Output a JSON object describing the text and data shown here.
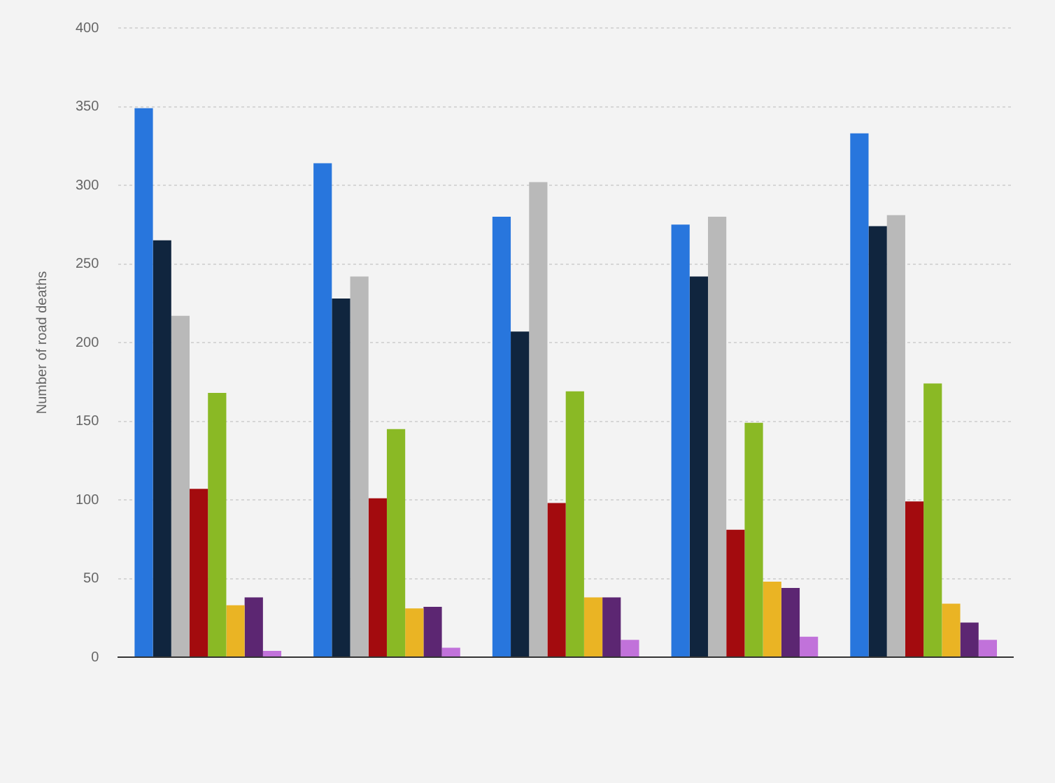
{
  "chart_data": {
    "type": "bar",
    "ylabel": "Number of road deaths",
    "categories": [
      null,
      null,
      null,
      null,
      null
    ],
    "series": [
      {
        "color": "#2876dd",
        "values": [
          349,
          314,
          280,
          275,
          333
        ]
      },
      {
        "color": "#10253e",
        "values": [
          265,
          228,
          207,
          242,
          274
        ]
      },
      {
        "color": "#b9b9b9",
        "values": [
          217,
          242,
          302,
          280,
          281
        ]
      },
      {
        "color": "#a30b0e",
        "values": [
          107,
          101,
          98,
          81,
          99
        ]
      },
      {
        "color": "#8ab925",
        "values": [
          168,
          145,
          169,
          149,
          174
        ]
      },
      {
        "color": "#eab424",
        "values": [
          33,
          31,
          38,
          48,
          34
        ]
      },
      {
        "color": "#5c2672",
        "values": [
          38,
          32,
          38,
          44,
          22
        ]
      },
      {
        "color": "#c172da",
        "values": [
          4,
          6,
          11,
          13,
          11
        ]
      }
    ],
    "ylim": [
      0,
      400
    ],
    "yticks": [
      0,
      50,
      100,
      150,
      200,
      250,
      300,
      350,
      400
    ],
    "grid": "y",
    "legend": false
  }
}
